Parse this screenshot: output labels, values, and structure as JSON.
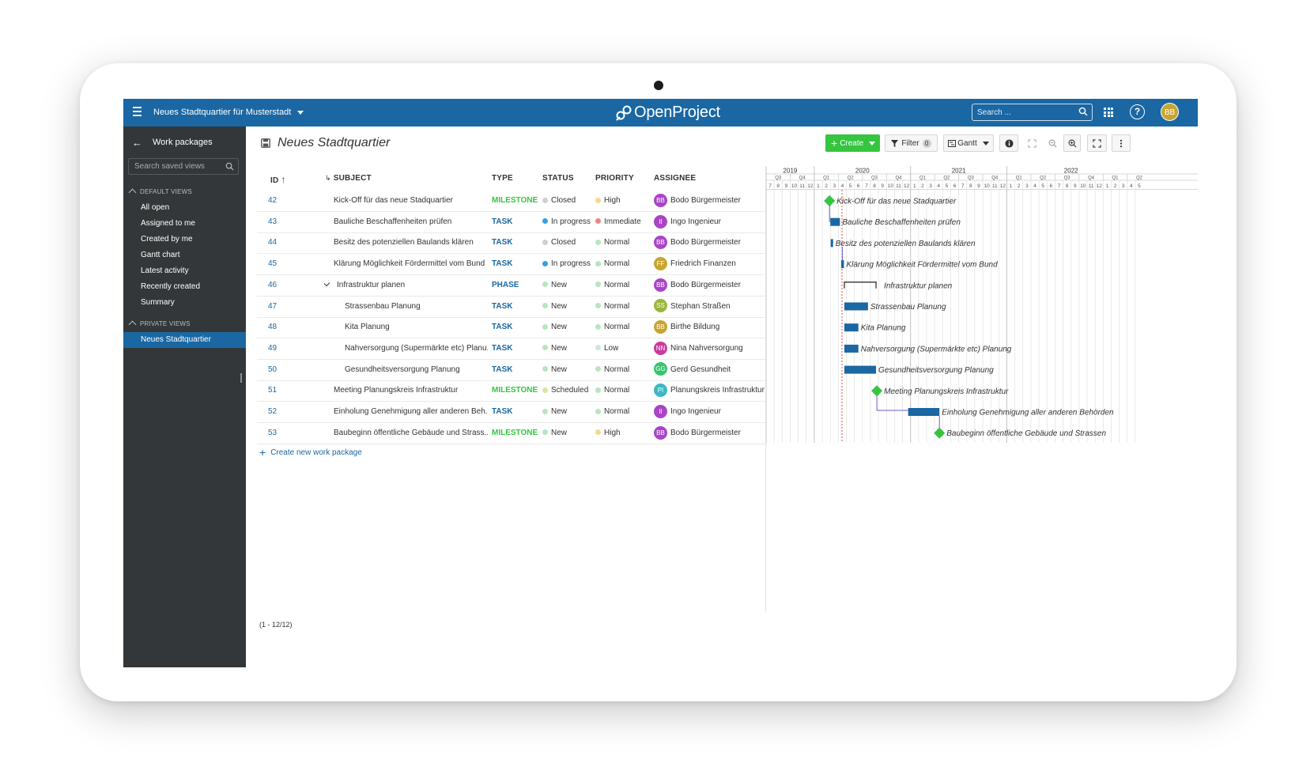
{
  "topbar": {
    "project_name": "Neues Stadtquartier für Musterstadt",
    "logo_text": "OpenProject",
    "search_placeholder": "Search ...",
    "user_initials": "BB"
  },
  "sidebar": {
    "title": "Work packages",
    "search_placeholder": "Search saved views",
    "default_views_label": "DEFAULT VIEWS",
    "default_views": [
      "All open",
      "Assigned to me",
      "Created by me",
      "Gantt chart",
      "Latest activity",
      "Recently created",
      "Summary"
    ],
    "private_views_label": "PRIVATE VIEWS",
    "private_views": [
      "Neues Stadtquartier"
    ]
  },
  "main": {
    "title": "Neues Stadtquartier",
    "toolbar": {
      "create_label": "Create",
      "filter_label": "Filter",
      "filter_count": "0",
      "gantt_label": "Gantt"
    },
    "columns": {
      "id": "ID",
      "subject": "SUBJECT",
      "type": "TYPE",
      "status": "STATUS",
      "priority": "PRIORITY",
      "assignee": "ASSIGNEE"
    },
    "rows": [
      {
        "id": "42",
        "subject": "Kick-Off für das neue Stadquartier",
        "type": "MILESTONE",
        "status": "Closed",
        "priority": "High",
        "assignee": "Bodo Bürgermeister",
        "initials": "BB",
        "indent": 0
      },
      {
        "id": "43",
        "subject": "Bauliche Beschaffenheiten prüfen",
        "type": "TASK",
        "status": "In progress",
        "priority": "Immediate",
        "assignee": "Ingo Ingenieur",
        "initials": "II",
        "indent": 0
      },
      {
        "id": "44",
        "subject": "Besitz des potenziellen Baulands klären",
        "type": "TASK",
        "status": "Closed",
        "priority": "Normal",
        "assignee": "Bodo Bürgermeister",
        "initials": "BB",
        "indent": 0
      },
      {
        "id": "45",
        "subject": "Klärung Möglichkeit Fördermittel vom Bund",
        "type": "TASK",
        "status": "In progress",
        "priority": "Normal",
        "assignee": "Friedrich Finanzen",
        "initials": "FF",
        "indent": 0
      },
      {
        "id": "46",
        "subject": "Infrastruktur planen",
        "type": "PHASE",
        "status": "New",
        "priority": "Normal",
        "assignee": "Bodo Bürgermeister",
        "initials": "BB",
        "indent": 0,
        "expandable": true
      },
      {
        "id": "47",
        "subject": "Strassenbau Planung",
        "type": "TASK",
        "status": "New",
        "priority": "Normal",
        "assignee": "Stephan Straßen",
        "initials": "SS",
        "indent": 1
      },
      {
        "id": "48",
        "subject": "Kita Planung",
        "type": "TASK",
        "status": "New",
        "priority": "Normal",
        "assignee": "Birthe Bildung",
        "initials": "BB",
        "indent": 1
      },
      {
        "id": "49",
        "subject": "Nahversorgung (Supermärkte etc) Planu...",
        "type": "TASK",
        "status": "New",
        "priority": "Low",
        "assignee": "Nina Nahversorgung",
        "initials": "NN",
        "indent": 1
      },
      {
        "id": "50",
        "subject": "Gesundheitsversorgung Planung",
        "type": "TASK",
        "status": "New",
        "priority": "Normal",
        "assignee": "Gerd Gesundheit",
        "initials": "GG",
        "indent": 1
      },
      {
        "id": "51",
        "subject": "Meeting Planungskreis Infrastruktur",
        "type": "MILESTONE",
        "status": "Scheduled",
        "priority": "Normal",
        "assignee": "Planungskreis Infrastruktur",
        "initials": "PI",
        "indent": 0
      },
      {
        "id": "52",
        "subject": "Einholung Genehmigung aller anderen Beh...",
        "type": "TASK",
        "status": "New",
        "priority": "Normal",
        "assignee": "Ingo Ingenieur",
        "initials": "II",
        "indent": 0
      },
      {
        "id": "53",
        "subject": "Baubeginn öffentliche Gebäude und Strass...",
        "type": "MILESTONE",
        "status": "New",
        "priority": "High",
        "assignee": "Bodo Bürgermeister",
        "initials": "BB",
        "indent": 0
      }
    ],
    "create_new_label": "Create new work package",
    "pagination": "(1 - 12/12)"
  },
  "gantt": {
    "years": [
      "2019",
      "2020",
      "2021",
      "2022"
    ],
    "quarters": [
      "Q3",
      "Q4",
      "Q1",
      "Q2",
      "Q3",
      "Q4",
      "Q1",
      "Q2",
      "Q3",
      "Q4",
      "Q1",
      "Q2",
      "Q3",
      "Q4",
      "Q1",
      "Q2"
    ],
    "months": [
      "7",
      "8",
      "9",
      "10",
      "11",
      "12",
      "1",
      "2",
      "3",
      "4",
      "5",
      "6",
      "7",
      "8",
      "9",
      "10",
      "11",
      "12",
      "1",
      "2",
      "3",
      "4",
      "5",
      "6",
      "7",
      "8",
      "9",
      "10",
      "11",
      "12",
      "1",
      "2",
      "3",
      "4",
      "5",
      "6",
      "7",
      "8",
      "9",
      "10",
      "11",
      "12",
      "1",
      "2",
      "3",
      "4",
      "5"
    ],
    "labels": [
      "Kick-Off für das neue Stadquartier",
      "Bauliche Beschaffenheiten prüfen",
      "Besitz des potenziellen Baulands klären",
      "Klärung Möglichkeit Fördermittel vom Bund",
      "Infrastruktur planen",
      "Strassenbau Planung",
      "Kita Planung",
      "Nahversorgung (Supermärkte etc) Planung",
      "Gesundheitsversorgung Planung",
      "Meeting Planungskreis Infrastruktur",
      "Einholung Genehmigung aller anderen Behörden",
      "Baubeginn öffentliche Gebäude und Strassen"
    ]
  },
  "colors": {
    "primary": "#1a67a3",
    "sidebar_bg": "#333739",
    "create_green": "#35c53f",
    "milestone_green": "#35c53f",
    "status_closed": "#cfcfcf",
    "status_in_progress": "#3aa0dc",
    "status_new": "#b6e6c1",
    "status_scheduled": "#d9e6a2",
    "priority_high": "#f7d98b",
    "priority_immediate": "#f08484",
    "priority_normal": "#b6e6c1",
    "priority_low": "#cde8d3",
    "avatars": {
      "BB": "#a945c6",
      "II": "#a945c6",
      "FF": "#c8a431",
      "SS": "#9bb63d",
      "BB2": "#c8a431",
      "NN": "#c93ba0",
      "GG": "#35c56f",
      "PI": "#3cb9c2"
    }
  }
}
